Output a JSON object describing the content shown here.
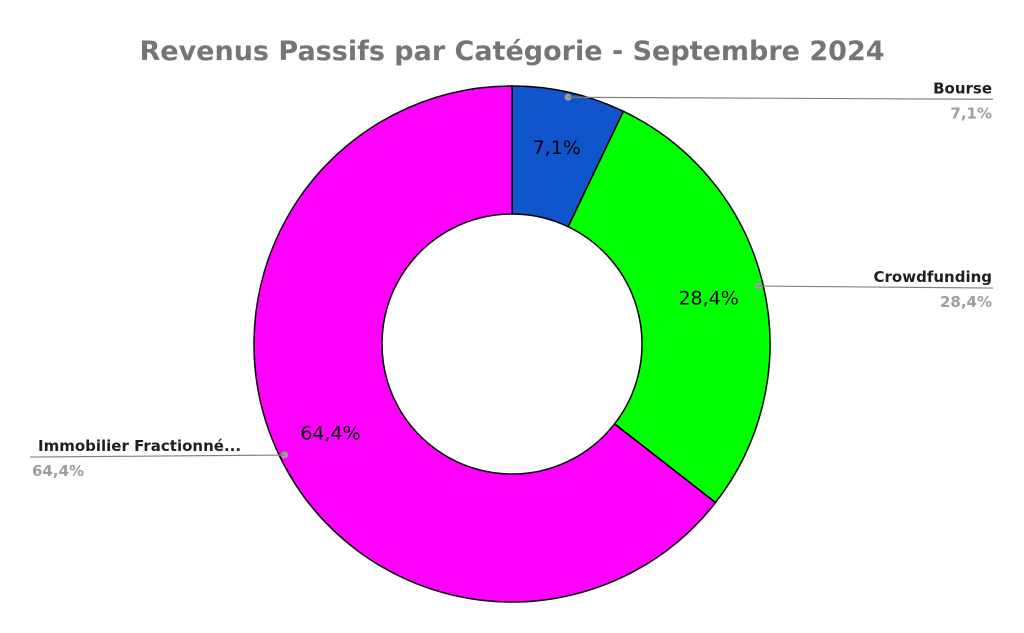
{
  "chart_data": {
    "type": "pie",
    "donut": true,
    "title": "Revenus Passifs par Catégorie - Septembre 2024",
    "slices": [
      {
        "name": "Bourse",
        "value_label": "7,1%",
        "percent": 7.1,
        "color": "#1155cc",
        "callout_side": "right"
      },
      {
        "name": "Crowdfunding",
        "value_label": "28,4%",
        "percent": 28.4,
        "color": "#00ff00",
        "callout_side": "right"
      },
      {
        "name": "Immobilier Fractionné...",
        "value_label": "64,4%",
        "percent": 64.4,
        "color": "#ff00ff",
        "callout_side": "left"
      }
    ],
    "legend": "none"
  }
}
